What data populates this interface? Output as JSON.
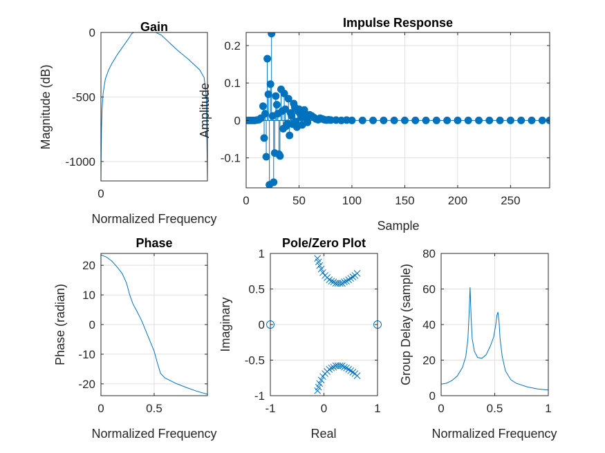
{
  "chart_data": [
    {
      "id": "gain",
      "type": "line",
      "title": "Gain",
      "xlabel": "Normalized Frequency",
      "ylabel": "Magnitude (dB)",
      "xlim": [
        0,
        0.97
      ],
      "ylim": [
        -1150,
        0
      ],
      "xticks": [
        0
      ],
      "yticks": [
        0,
        -500,
        -1000
      ],
      "grid": true,
      "color": "#0072BD",
      "series": [
        {
          "x": [
            0,
            0.002,
            0.005,
            0.01,
            0.02,
            0.04,
            0.07,
            0.1,
            0.15,
            0.2,
            0.25,
            0.28,
            0.3,
            0.33,
            0.4,
            0.5,
            0.55,
            0.6,
            0.7,
            0.8,
            0.9,
            0.94,
            0.96,
            0.97
          ],
          "y": [
            -1150,
            -950,
            -750,
            -600,
            -470,
            -360,
            -290,
            -240,
            -170,
            -110,
            -50,
            -10,
            0,
            0,
            0,
            0,
            -20,
            -60,
            -140,
            -210,
            -290,
            -350,
            -500,
            -1150
          ]
        }
      ]
    },
    {
      "id": "impulse",
      "type": "stem",
      "title": "Impulse Response",
      "xlabel": "Sample",
      "ylabel": "Amplitude",
      "xlim": [
        0,
        287
      ],
      "ylim": [
        -0.18,
        0.235
      ],
      "xticks": [
        0,
        50,
        100,
        150,
        200,
        250
      ],
      "yticks": [
        0.2,
        0.1,
        0,
        -0.1
      ],
      "grid": true,
      "color": "#0072BD",
      "series": [
        {
          "x": [
            0,
            2,
            4,
            6,
            8,
            10,
            12,
            14,
            16,
            17,
            18,
            19,
            20,
            21,
            22,
            23,
            24,
            25,
            26,
            27,
            28,
            29,
            30,
            31,
            32,
            33,
            34,
            35,
            36,
            37,
            38,
            39,
            40,
            41,
            42,
            43,
            44,
            45,
            46,
            47,
            48,
            49,
            50,
            51,
            52,
            53,
            54,
            55,
            56,
            57,
            58,
            59,
            60,
            62,
            64,
            66,
            68,
            70,
            72,
            74,
            76,
            78,
            80,
            85,
            90,
            95,
            100,
            110,
            120,
            130,
            140,
            150,
            160,
            170,
            180,
            190,
            200,
            210,
            220,
            230,
            240,
            250,
            260,
            270,
            280,
            287
          ],
          "y": [
            0,
            0,
            0,
            0,
            0,
            0.001,
            0.002,
            0.006,
            0.038,
            -0.047,
            0.018,
            -0.097,
            0.165,
            0.07,
            -0.172,
            0.097,
            0.232,
            0.012,
            -0.165,
            -0.087,
            0.065,
            0.042,
            0.018,
            -0.09,
            -0.095,
            0.083,
            0.025,
            -0.022,
            0.072,
            0.03,
            -0.015,
            -0.008,
            0.058,
            -0.04,
            0.02,
            0.012,
            -0.01,
            0.045,
            0.035,
            -0.003,
            -0.018,
            0.025,
            0.03,
            0.018,
            0.008,
            -0.012,
            0.015,
            0.028,
            0.012,
            0.004,
            -0.005,
            0.01,
            0.015,
            0.012,
            0.008,
            0.004,
            0.002,
            0.006,
            0.004,
            0.002,
            0.001,
            0.002,
            0.001,
            0.001,
            0,
            0.001,
            0,
            0,
            0,
            0,
            0,
            0,
            0,
            0,
            0,
            0,
            0,
            0,
            0,
            0,
            0,
            0,
            0,
            0,
            0,
            0
          ]
        }
      ]
    },
    {
      "id": "phase",
      "type": "line",
      "title": "Phase",
      "xlabel": "Normalized Frequency",
      "ylabel": "Phase (radian)",
      "xlim": [
        0,
        1
      ],
      "ylim": [
        -24,
        24
      ],
      "xticks": [
        0,
        0.5
      ],
      "yticks": [
        20,
        10,
        0,
        -10,
        -20
      ],
      "grid": true,
      "color": "#0072BD",
      "series": [
        {
          "x": [
            0,
            0.05,
            0.1,
            0.15,
            0.2,
            0.24,
            0.27,
            0.3,
            0.33,
            0.38,
            0.42,
            0.46,
            0.5,
            0.53,
            0.56,
            0.6,
            0.7,
            0.8,
            0.9,
            1.0
          ],
          "y": [
            23.5,
            22.8,
            21.5,
            19.5,
            17.2,
            14,
            10,
            7,
            5,
            1.5,
            -2,
            -5.5,
            -9,
            -13,
            -16.5,
            -18,
            -19.8,
            -21.2,
            -22.5,
            -23.5
          ]
        }
      ]
    },
    {
      "id": "polezero",
      "type": "scatter",
      "title": "Pole/Zero Plot",
      "xlabel": "Real",
      "ylabel": "Imaginary",
      "xlim": [
        -1,
        1
      ],
      "ylim": [
        -1,
        1
      ],
      "xticks": [
        -1,
        0,
        1
      ],
      "yticks": [
        1,
        0.5,
        0,
        -0.5,
        -1
      ],
      "grid": true,
      "color": "#0072BD",
      "zeros": {
        "x": [
          -1,
          1
        ],
        "y": [
          0,
          0
        ]
      },
      "poles": {
        "x": [
          -0.12,
          -0.1,
          -0.08,
          -0.05,
          -0.02,
          0.02,
          0.06,
          0.1,
          0.14,
          0.18,
          0.22,
          0.26,
          0.3,
          0.34,
          0.38,
          0.42,
          0.46,
          0.5,
          0.54,
          0.58,
          0.62
        ],
        "y": [
          0.93,
          0.88,
          0.83,
          0.78,
          0.73,
          0.69,
          0.66,
          0.63,
          0.61,
          0.6,
          0.58,
          0.58,
          0.58,
          0.58,
          0.6,
          0.61,
          0.63,
          0.65,
          0.67,
          0.69,
          0.72
        ]
      }
    },
    {
      "id": "groupdelay",
      "type": "line",
      "title": "",
      "xlabel": "Normalized Frequency",
      "ylabel": "Group Delay (sample)",
      "xlim": [
        0,
        1
      ],
      "ylim": [
        0,
        80
      ],
      "xticks": [
        0,
        0.5,
        1
      ],
      "yticks": [
        80,
        60,
        40,
        20,
        0
      ],
      "grid": true,
      "color": "#0072BD",
      "series": [
        {
          "x": [
            0,
            0.05,
            0.1,
            0.15,
            0.2,
            0.23,
            0.25,
            0.26,
            0.27,
            0.28,
            0.29,
            0.31,
            0.34,
            0.38,
            0.42,
            0.46,
            0.49,
            0.51,
            0.52,
            0.53,
            0.54,
            0.55,
            0.57,
            0.6,
            0.65,
            0.7,
            0.8,
            0.9,
            1.0
          ],
          "y": [
            6.5,
            7,
            8.5,
            11,
            16,
            22,
            32,
            45,
            61,
            44,
            32,
            25,
            21.5,
            21,
            23,
            28,
            33,
            40,
            45,
            47,
            42,
            32,
            22,
            14,
            9,
            7,
            5,
            3.8,
            3.2
          ]
        }
      ]
    }
  ]
}
